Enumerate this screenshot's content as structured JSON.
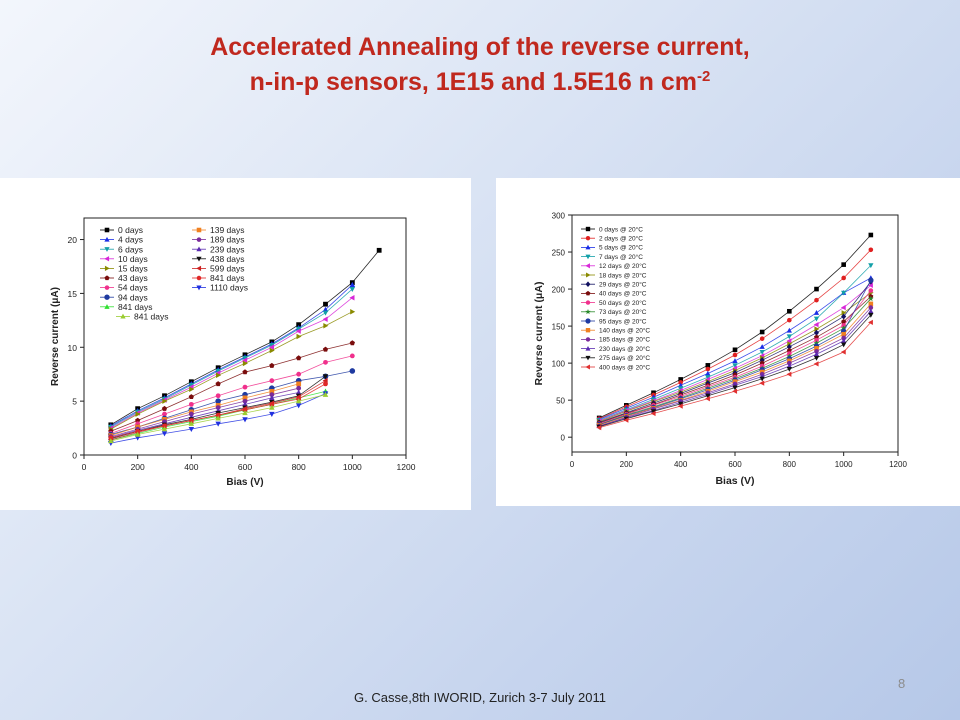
{
  "slide": {
    "title_line1": "Accelerated Annealing of the reverse current,",
    "title_line2": "n-in-p sensors, 1E15 and 1.5E16 n cm",
    "title_sup": "-2",
    "footer": "G. Casse,8th IWORID, Zurich 3-7 July 2011",
    "page_number": "8",
    "title_color": "#c0281e"
  },
  "chart_data": [
    {
      "type": "scatter",
      "title": "",
      "xlabel": "Bias (V)",
      "ylabel": "Reverse current (μA)",
      "xlim": [
        0,
        1200
      ],
      "ylim": [
        0,
        22
      ],
      "xticks": [
        0,
        200,
        400,
        600,
        800,
        1000,
        1200
      ],
      "yticks": [
        0,
        5,
        10,
        15,
        20
      ],
      "grid": false,
      "legend_position": "top-left",
      "legend_columns": 2,
      "series": [
        {
          "name": "0 days",
          "color": "#000000",
          "marker": "square",
          "x": [
            100,
            200,
            300,
            400,
            500,
            600,
            700,
            800,
            900,
            1000,
            1100
          ],
          "y": [
            2.8,
            4.3,
            5.5,
            6.8,
            8.1,
            9.3,
            10.5,
            12.1,
            14.0,
            16.0,
            19.0
          ]
        },
        {
          "name": "4 days",
          "color": "#1a2ee6",
          "marker": "triangle-up",
          "x": [
            100,
            200,
            300,
            400,
            500,
            600,
            700,
            800,
            900,
            1000
          ],
          "y": [
            2.7,
            4.1,
            5.3,
            6.6,
            7.9,
            9.1,
            10.3,
            11.8,
            13.5,
            15.8
          ]
        },
        {
          "name": "6 days",
          "color": "#13a0a8",
          "marker": "triangle-down",
          "x": [
            100,
            200,
            300,
            400,
            500,
            600,
            700,
            800,
            900,
            1000
          ],
          "y": [
            2.6,
            4.0,
            5.2,
            6.5,
            7.8,
            9.0,
            10.2,
            11.7,
            13.2,
            15.4
          ]
        },
        {
          "name": "10 days",
          "color": "#d828d8",
          "marker": "triangle-left",
          "x": [
            100,
            200,
            300,
            400,
            500,
            600,
            700,
            800,
            900,
            1000
          ],
          "y": [
            2.5,
            3.9,
            5.1,
            6.3,
            7.6,
            8.8,
            10.0,
            11.5,
            12.6,
            14.6
          ]
        },
        {
          "name": "15 days",
          "color": "#8a8a00",
          "marker": "triangle-right",
          "x": [
            100,
            200,
            300,
            400,
            500,
            600,
            700,
            800,
            900,
            1000
          ],
          "y": [
            2.4,
            3.8,
            5.0,
            6.1,
            7.4,
            8.5,
            9.7,
            11.0,
            12.0,
            13.3
          ]
        },
        {
          "name": "43 days",
          "color": "#7a0d0d",
          "marker": "pentagon",
          "x": [
            100,
            200,
            300,
            400,
            500,
            600,
            700,
            800,
            900,
            1000
          ],
          "y": [
            2.2,
            3.2,
            4.3,
            5.4,
            6.6,
            7.7,
            8.3,
            9.0,
            9.8,
            10.4
          ]
        },
        {
          "name": "54 days",
          "color": "#f0308c",
          "marker": "circle",
          "x": [
            100,
            200,
            300,
            400,
            500,
            600,
            700,
            800,
            900,
            1000
          ],
          "y": [
            2.0,
            2.9,
            3.8,
            4.7,
            5.5,
            6.3,
            6.9,
            7.5,
            8.6,
            9.2
          ]
        },
        {
          "name": "94 days",
          "color": "#1f3aa0",
          "marker": "circle-half",
          "x": [
            100,
            200,
            300,
            400,
            500,
            600,
            700,
            800,
            900,
            1000
          ],
          "y": [
            1.9,
            2.6,
            3.4,
            4.2,
            5.0,
            5.6,
            6.2,
            6.9,
            7.3,
            7.8
          ]
        },
        {
          "name": "841 days",
          "color": "#30e030",
          "marker": "triangle-up",
          "x": [
            100,
            200,
            300,
            400,
            500,
            600,
            700,
            800,
            900
          ],
          "y": [
            1.4,
            2.0,
            2.6,
            3.1,
            3.6,
            4.2,
            4.7,
            5.3,
            5.9
          ]
        },
        {
          "name": "139 days",
          "color": "#f08020",
          "marker": "square",
          "x": [
            100,
            200,
            300,
            400,
            500,
            600,
            700,
            800
          ],
          "y": [
            1.8,
            2.6,
            3.3,
            4.0,
            4.6,
            5.3,
            5.9,
            6.6
          ]
        },
        {
          "name": "189 days",
          "color": "#7b2a9a",
          "marker": "circle",
          "x": [
            100,
            200,
            300,
            400,
            500,
            600,
            700,
            800
          ],
          "y": [
            1.7,
            2.4,
            3.1,
            3.8,
            4.4,
            5.0,
            5.6,
            6.2
          ]
        },
        {
          "name": "239 days",
          "color": "#5a2ab0",
          "marker": "triangle-up",
          "x": [
            100,
            200,
            300,
            400,
            500,
            600,
            700,
            800
          ],
          "y": [
            1.6,
            2.3,
            2.9,
            3.5,
            4.1,
            4.7,
            5.3,
            5.8
          ]
        },
        {
          "name": "438 days",
          "color": "#101010",
          "marker": "triangle-down",
          "x": [
            100,
            200,
            300,
            400,
            500,
            600,
            700,
            800,
            900
          ],
          "y": [
            1.5,
            2.2,
            2.8,
            3.3,
            3.9,
            4.4,
            4.9,
            5.5,
            7.3
          ]
        },
        {
          "name": "599 days",
          "color": "#cc2020",
          "marker": "triangle-left",
          "x": [
            100,
            200,
            300,
            400,
            500,
            600,
            700,
            800,
            900
          ],
          "y": [
            1.4,
            2.1,
            2.7,
            3.2,
            3.7,
            4.3,
            4.8,
            5.4,
            6.9
          ]
        },
        {
          "name": "841 days",
          "color": "#e02828",
          "marker": "circle",
          "x": [
            100,
            200,
            300,
            400,
            500,
            600,
            700,
            800,
            900
          ],
          "y": [
            1.6,
            2.2,
            2.7,
            3.2,
            3.7,
            4.2,
            4.7,
            5.2,
            6.6
          ]
        },
        {
          "name": "1110 days",
          "color": "#2030e0",
          "marker": "triangle-down",
          "x": [
            100,
            200,
            300,
            400,
            500,
            600,
            700,
            800,
            900
          ],
          "y": [
            1.1,
            1.6,
            2.0,
            2.4,
            2.9,
            3.3,
            3.8,
            4.6,
            5.7
          ]
        },
        {
          "name": "841 days",
          "color": "#9acc30",
          "marker": "triangle-up",
          "x": [
            100,
            200,
            300,
            400,
            500,
            600,
            700,
            800,
            900
          ],
          "y": [
            1.3,
            1.9,
            2.4,
            2.9,
            3.4,
            3.9,
            4.4,
            5.0,
            5.6
          ]
        }
      ]
    },
    {
      "type": "scatter",
      "title": "",
      "xlabel": "Bias (V)",
      "ylabel": "Reverse current (μA)",
      "xlim": [
        0,
        1200
      ],
      "ylim": [
        -20,
        300
      ],
      "xticks": [
        0,
        200,
        400,
        600,
        800,
        1000,
        1200
      ],
      "yticks": [
        0,
        50,
        100,
        150,
        200,
        250,
        300
      ],
      "grid": false,
      "legend_position": "top-left",
      "legend_columns": 1,
      "series": [
        {
          "name": "0 days @ 20°C",
          "color": "#000000",
          "marker": "square",
          "x": [
            100,
            200,
            300,
            400,
            500,
            600,
            700,
            800,
            900,
            1000,
            1100
          ],
          "y": [
            26,
            43,
            60,
            78,
            97,
            118,
            142,
            170,
            200,
            233,
            273
          ]
        },
        {
          "name": "2 days @ 20°C",
          "color": "#e02020",
          "marker": "circle",
          "x": [
            100,
            200,
            300,
            400,
            500,
            600,
            700,
            800,
            900,
            1000,
            1100
          ],
          "y": [
            25,
            41,
            57,
            74,
            92,
            111,
            133,
            158,
            185,
            215,
            253
          ]
        },
        {
          "name": "5 days @ 20°C",
          "color": "#1a2ee6",
          "marker": "triangle-up",
          "x": [
            100,
            200,
            300,
            400,
            500,
            600,
            700,
            800,
            900,
            1000,
            1100
          ],
          "y": [
            24,
            39,
            54,
            70,
            86,
            103,
            122,
            144,
            168,
            195,
            215
          ]
        },
        {
          "name": "7 days @ 20°C",
          "color": "#13a0a8",
          "marker": "triangle-down",
          "x": [
            100,
            200,
            300,
            400,
            500,
            600,
            700,
            800,
            900,
            1000,
            1100
          ],
          "y": [
            23,
            37,
            51,
            66,
            81,
            97,
            115,
            136,
            160,
            195,
            232
          ]
        },
        {
          "name": "12 days @ 20°C",
          "color": "#d828d8",
          "marker": "triangle-left",
          "x": [
            100,
            200,
            300,
            400,
            500,
            600,
            700,
            800,
            900,
            1000,
            1100
          ],
          "y": [
            22,
            36,
            49,
            63,
            78,
            93,
            110,
            130,
            152,
            175,
            205
          ]
        },
        {
          "name": "18 days @ 20°C",
          "color": "#8a8a00",
          "marker": "triangle-right",
          "x": [
            100,
            200,
            300,
            400,
            500,
            600,
            700,
            800,
            900,
            1000,
            1100
          ],
          "y": [
            21,
            35,
            48,
            61,
            75,
            90,
            107,
            126,
            146,
            168,
            195
          ]
        },
        {
          "name": "29 days @ 20°C",
          "color": "#101060",
          "marker": "diamond",
          "x": [
            100,
            200,
            300,
            400,
            500,
            600,
            700,
            800,
            900,
            1000,
            1100
          ],
          "y": [
            20,
            33,
            46,
            59,
            73,
            87,
            104,
            122,
            141,
            163,
            210
          ]
        },
        {
          "name": "40 days @ 20°C",
          "color": "#7a0d0d",
          "marker": "pentagon",
          "x": [
            100,
            200,
            300,
            400,
            500,
            600,
            700,
            800,
            900,
            1000,
            1100
          ],
          "y": [
            19,
            32,
            44,
            57,
            70,
            84,
            100,
            117,
            135,
            156,
            190
          ]
        },
        {
          "name": "50 days @ 20°C",
          "color": "#f0308c",
          "marker": "circle",
          "x": [
            100,
            200,
            300,
            400,
            500,
            600,
            700,
            800,
            900,
            1000,
            1100
          ],
          "y": [
            18,
            31,
            43,
            55,
            68,
            81,
            96,
            113,
            131,
            151,
            198
          ]
        },
        {
          "name": "73 days @ 20°C",
          "color": "#2a8a2a",
          "marker": "star",
          "x": [
            100,
            200,
            300,
            400,
            500,
            600,
            700,
            800,
            900,
            1000,
            1100
          ],
          "y": [
            17,
            30,
            41,
            53,
            66,
            79,
            93,
            109,
            127,
            147,
            187
          ]
        },
        {
          "name": "95 days @ 20°C",
          "color": "#1f3aa0",
          "marker": "circle-half",
          "x": [
            100,
            200,
            300,
            400,
            500,
            600,
            700,
            800,
            900,
            1000,
            1100
          ],
          "y": [
            17,
            29,
            40,
            52,
            64,
            77,
            91,
            106,
            123,
            143,
            212
          ]
        },
        {
          "name": "140 days @ 20°C",
          "color": "#f08020",
          "marker": "square",
          "x": [
            100,
            200,
            300,
            400,
            500,
            600,
            700,
            800,
            900,
            1000,
            1100
          ],
          "y": [
            16,
            28,
            39,
            50,
            62,
            75,
            88,
            103,
            120,
            139,
            180
          ]
        },
        {
          "name": "185 days @ 20°C",
          "color": "#7b2a9a",
          "marker": "circle",
          "x": [
            100,
            200,
            300,
            400,
            500,
            600,
            700,
            800,
            900,
            1000,
            1100
          ],
          "y": [
            15,
            27,
            38,
            49,
            60,
            72,
            85,
            100,
            116,
            134,
            175
          ]
        },
        {
          "name": "230 days @ 20°C",
          "color": "#5a2ab0",
          "marker": "triangle-up",
          "x": [
            100,
            200,
            300,
            400,
            500,
            600,
            700,
            800,
            900,
            1000,
            1100
          ],
          "y": [
            15,
            26,
            36,
            47,
            58,
            70,
            82,
            96,
            112,
            130,
            170
          ]
        },
        {
          "name": "275 days @ 20°C",
          "color": "#101010",
          "marker": "triangle-down",
          "x": [
            100,
            200,
            300,
            400,
            500,
            600,
            700,
            800,
            900,
            1000,
            1100
          ],
          "y": [
            14,
            25,
            35,
            45,
            56,
            67,
            79,
            92,
            107,
            125,
            165
          ]
        },
        {
          "name": "400 days @ 20°C",
          "color": "#e03030",
          "marker": "triangle-left",
          "x": [
            100,
            200,
            300,
            400,
            500,
            600,
            700,
            800,
            900,
            1000,
            1100
          ],
          "y": [
            13,
            23,
            32,
            42,
            52,
            62,
            73,
            85,
            99,
            115,
            155
          ]
        }
      ]
    }
  ]
}
